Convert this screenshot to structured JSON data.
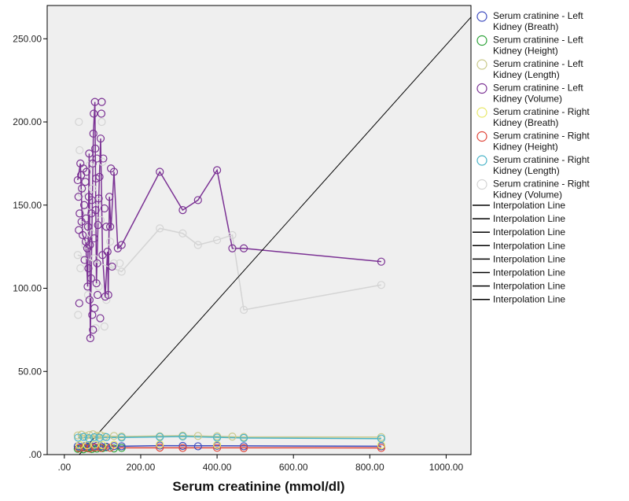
{
  "chart_data": {
    "type": "scatter",
    "xlabel": "Serum creatinine (mmol/dl)",
    "ylabel": "",
    "xlim": [
      -45,
      1065
    ],
    "ylim": [
      0,
      270
    ],
    "x_ticks": [
      0,
      200,
      400,
      600,
      800,
      1000
    ],
    "x_tick_labels": [
      ".00",
      "200.00",
      "400.00",
      "600.00",
      "800.00",
      "1000.00"
    ],
    "y_ticks": [
      0,
      50,
      100,
      150,
      200,
      250
    ],
    "y_tick_labels": [
      ".00",
      "50.00",
      "100.00",
      "150.00",
      "200.00",
      "250.00"
    ],
    "grid": false,
    "legend_position": "right",
    "reference_line": {
      "x": [
        0,
        1065
      ],
      "y": [
        -10,
        263
      ]
    },
    "series": [
      {
        "name": "Serum cratinine - Left Kidney (Breath)",
        "color": "#3f4dbf",
        "points": [
          [
            35,
            5
          ],
          [
            45,
            4.5
          ],
          [
            55,
            5.2
          ],
          [
            65,
            5
          ],
          [
            75,
            4.8
          ],
          [
            85,
            5.3
          ],
          [
            95,
            5
          ],
          [
            110,
            4.7
          ],
          [
            130,
            5.1
          ],
          [
            150,
            5
          ],
          [
            250,
            5.4
          ],
          [
            310,
            5.2
          ],
          [
            350,
            5
          ],
          [
            400,
            5.3
          ],
          [
            470,
            5
          ],
          [
            830,
            5
          ]
        ],
        "line": [
          [
            35,
            5
          ],
          [
            150,
            5
          ],
          [
            250,
            5.4
          ],
          [
            400,
            5.3
          ],
          [
            830,
            5
          ]
        ]
      },
      {
        "name": "Serum cratinine - Left Kidney (Height)",
        "color": "#2ea33a",
        "points": [
          [
            35,
            3.5
          ],
          [
            42,
            4
          ],
          [
            50,
            3.2
          ],
          [
            58,
            4.2
          ],
          [
            62,
            3.8
          ],
          [
            68,
            4.5
          ],
          [
            72,
            3.3
          ],
          [
            78,
            4.1
          ],
          [
            85,
            3.6
          ],
          [
            92,
            4.3
          ],
          [
            100,
            3.9
          ],
          [
            110,
            4.4
          ],
          [
            130,
            3.7
          ],
          [
            150,
            4
          ]
        ],
        "line": []
      },
      {
        "name": "Serum cratinine - Left Kidney (Length)",
        "color": "#c9c98a",
        "points": [
          [
            35,
            11.5
          ],
          [
            45,
            12
          ],
          [
            55,
            11
          ],
          [
            65,
            11.8
          ],
          [
            75,
            12.2
          ],
          [
            85,
            11.3
          ],
          [
            95,
            11.6
          ],
          [
            105,
            10.8
          ],
          [
            130,
            11.2
          ],
          [
            150,
            10.9
          ],
          [
            250,
            11
          ],
          [
            310,
            11.4
          ],
          [
            350,
            11.2
          ],
          [
            400,
            11
          ],
          [
            440,
            10.8
          ],
          [
            470,
            10.6
          ],
          [
            830,
            10.5
          ]
        ],
        "line": [
          [
            35,
            11.5
          ],
          [
            150,
            10.9
          ],
          [
            310,
            11.4
          ],
          [
            470,
            10.6
          ],
          [
            830,
            10.5
          ]
        ]
      },
      {
        "name": "Serum cratinine - Left Kidney (Volume)",
        "color": "#7b3294",
        "points": [
          [
            35,
            165
          ],
          [
            37,
            155
          ],
          [
            38,
            135
          ],
          [
            39,
            91
          ],
          [
            40,
            145
          ],
          [
            42,
            175
          ],
          [
            44,
            168
          ],
          [
            45,
            140
          ],
          [
            46,
            160
          ],
          [
            48,
            132
          ],
          [
            50,
            172
          ],
          [
            52,
            150
          ],
          [
            53,
            117
          ],
          [
            55,
            164
          ],
          [
            56,
            128
          ],
          [
            57,
            142
          ],
          [
            58,
            170
          ],
          [
            60,
            124
          ],
          [
            61,
            101
          ],
          [
            62,
            137
          ],
          [
            63,
            112
          ],
          [
            64,
            155
          ],
          [
            65,
            181
          ],
          [
            66,
            93
          ],
          [
            67,
            126
          ],
          [
            68,
            70
          ],
          [
            70,
            106
          ],
          [
            71,
            145
          ],
          [
            72,
            153
          ],
          [
            73,
            84
          ],
          [
            74,
            175
          ],
          [
            75,
            75
          ],
          [
            76,
            193
          ],
          [
            77,
            205
          ],
          [
            78,
            130
          ],
          [
            79,
            88
          ],
          [
            80,
            212
          ],
          [
            81,
            184
          ],
          [
            82,
            147
          ],
          [
            83,
            166
          ],
          [
            84,
            103
          ],
          [
            85,
            178
          ],
          [
            86,
            115
          ],
          [
            87,
            96
          ],
          [
            88,
            138
          ],
          [
            90,
            154
          ],
          [
            92,
            167
          ],
          [
            94,
            82
          ],
          [
            95,
            190
          ],
          [
            97,
            205
          ],
          [
            98,
            212
          ],
          [
            100,
            120
          ],
          [
            102,
            178
          ],
          [
            105,
            148
          ],
          [
            107,
            95
          ],
          [
            110,
            137
          ],
          [
            113,
            122
          ],
          [
            115,
            96
          ],
          [
            118,
            155
          ],
          [
            120,
            137
          ],
          [
            122,
            172
          ],
          [
            125,
            113
          ],
          [
            130,
            170
          ],
          [
            140,
            124
          ],
          [
            150,
            126
          ],
          [
            250,
            170
          ],
          [
            310,
            147
          ],
          [
            350,
            153
          ],
          [
            400,
            171
          ],
          [
            440,
            124
          ],
          [
            470,
            124
          ],
          [
            830,
            116
          ]
        ],
        "line": [
          [
            35,
            165
          ],
          [
            42,
            175
          ],
          [
            48,
            132
          ],
          [
            56,
            128
          ],
          [
            61,
            101
          ],
          [
            65,
            181
          ],
          [
            68,
            70
          ],
          [
            76,
            193
          ],
          [
            80,
            212
          ],
          [
            84,
            103
          ],
          [
            90,
            154
          ],
          [
            95,
            190
          ],
          [
            100,
            120
          ],
          [
            107,
            95
          ],
          [
            113,
            122
          ],
          [
            115,
            96
          ],
          [
            118,
            155
          ],
          [
            122,
            135
          ],
          [
            130,
            170
          ],
          [
            140,
            124
          ],
          [
            150,
            126
          ],
          [
            250,
            170
          ],
          [
            310,
            147
          ],
          [
            350,
            153
          ],
          [
            400,
            171
          ],
          [
            440,
            124
          ],
          [
            470,
            124
          ],
          [
            830,
            116
          ]
        ]
      },
      {
        "name": "Serum cratinine - Right Kidney (Breath)",
        "color": "#e8e86a",
        "points": [
          [
            40,
            5.8
          ],
          [
            60,
            5.6
          ],
          [
            80,
            6
          ],
          [
            100,
            5.7
          ],
          [
            130,
            5.9
          ],
          [
            250,
            6.1
          ],
          [
            400,
            5.8
          ],
          [
            830,
            5.6
          ]
        ],
        "line": []
      },
      {
        "name": "Serum cratinine - Right Kidney (Height)",
        "color": "#e0463a",
        "points": [
          [
            38,
            3.9
          ],
          [
            52,
            4.2
          ],
          [
            66,
            3.7
          ],
          [
            80,
            4.3
          ],
          [
            96,
            4
          ],
          [
            120,
            4.1
          ],
          [
            250,
            4.2
          ],
          [
            310,
            4
          ],
          [
            400,
            4.1
          ],
          [
            470,
            3.9
          ],
          [
            830,
            4
          ]
        ],
        "line": [
          [
            38,
            3.9
          ],
          [
            150,
            4.1
          ],
          [
            400,
            4.1
          ],
          [
            830,
            4
          ]
        ]
      },
      {
        "name": "Serum cratinine - Right Kidney (Length)",
        "color": "#4ab4c8",
        "points": [
          [
            36,
            10.2
          ],
          [
            50,
            10.6
          ],
          [
            64,
            9.9
          ],
          [
            78,
            10.4
          ],
          [
            92,
            10.1
          ],
          [
            110,
            10.5
          ],
          [
            150,
            10.3
          ],
          [
            250,
            10.6
          ],
          [
            310,
            10.9
          ],
          [
            400,
            10.2
          ],
          [
            470,
            10
          ],
          [
            830,
            9.6
          ]
        ],
        "line": [
          [
            36,
            10.2
          ],
          [
            150,
            10.3
          ],
          [
            310,
            10.9
          ],
          [
            470,
            10
          ],
          [
            830,
            9.6
          ]
        ]
      },
      {
        "name": "Serum cratinine - Right Kidney (Volume)",
        "color": "#d4d4d4",
        "points": [
          [
            35,
            120
          ],
          [
            36,
            84
          ],
          [
            38,
            200
          ],
          [
            40,
            183
          ],
          [
            42,
            112
          ],
          [
            45,
            157
          ],
          [
            50,
            138
          ],
          [
            55,
            126
          ],
          [
            58,
            146
          ],
          [
            62,
            96
          ],
          [
            66,
            174
          ],
          [
            70,
            133
          ],
          [
            74,
            160
          ],
          [
            78,
            118
          ],
          [
            82,
            76
          ],
          [
            86,
            152
          ],
          [
            90,
            101
          ],
          [
            95,
            141
          ],
          [
            98,
            200
          ],
          [
            100,
            176
          ],
          [
            105,
            77
          ],
          [
            110,
            93
          ],
          [
            120,
            128
          ],
          [
            130,
            115
          ],
          [
            145,
            115
          ],
          [
            150,
            110
          ],
          [
            250,
            136
          ],
          [
            310,
            133
          ],
          [
            350,
            126
          ],
          [
            400,
            129
          ],
          [
            440,
            132
          ],
          [
            470,
            87
          ],
          [
            830,
            102
          ]
        ],
        "line": [
          [
            35,
            120
          ],
          [
            150,
            110
          ],
          [
            250,
            136
          ],
          [
            310,
            133
          ],
          [
            350,
            126
          ],
          [
            400,
            129
          ],
          [
            440,
            132
          ],
          [
            470,
            87
          ],
          [
            830,
            102
          ]
        ]
      }
    ]
  },
  "legend": {
    "items": [
      {
        "label_lines": [
          "Serum cratinine - Left",
          "Kidney (Breath)"
        ],
        "color": "#3f4dbf"
      },
      {
        "label_lines": [
          "Serum cratinine - Left",
          "Kidney (Height)"
        ],
        "color": "#2ea33a"
      },
      {
        "label_lines": [
          "Serum cratinine - Left",
          "Kidney (Length)"
        ],
        "color": "#c9c98a"
      },
      {
        "label_lines": [
          "Serum cratinine - Left",
          "Kidney (Volume)"
        ],
        "color": "#7b3294"
      },
      {
        "label_lines": [
          "Serum cratinine - Right",
          "Kidney (Breath)"
        ],
        "color": "#e8e86a"
      },
      {
        "label_lines": [
          "Serum cratinine - Right",
          "Kidney (Height)"
        ],
        "color": "#e0463a"
      },
      {
        "label_lines": [
          "Serum cratinine - Right",
          "Kidney (Length)"
        ],
        "color": "#4ab4c8"
      },
      {
        "label_lines": [
          "Serum cratinine - Right",
          "Kidney (Volume)"
        ],
        "color": "#d4d4d4"
      }
    ],
    "line_items": [
      "Interpolation Line",
      "Interpolation Line",
      "Interpolation Line",
      "Interpolation Line",
      "Interpolation Line",
      "Interpolation Line",
      "Interpolation Line",
      "Interpolation Line"
    ]
  },
  "colors": {
    "plot_background": "#efefef",
    "axis": "#000000",
    "reference_line": "#000000"
  }
}
